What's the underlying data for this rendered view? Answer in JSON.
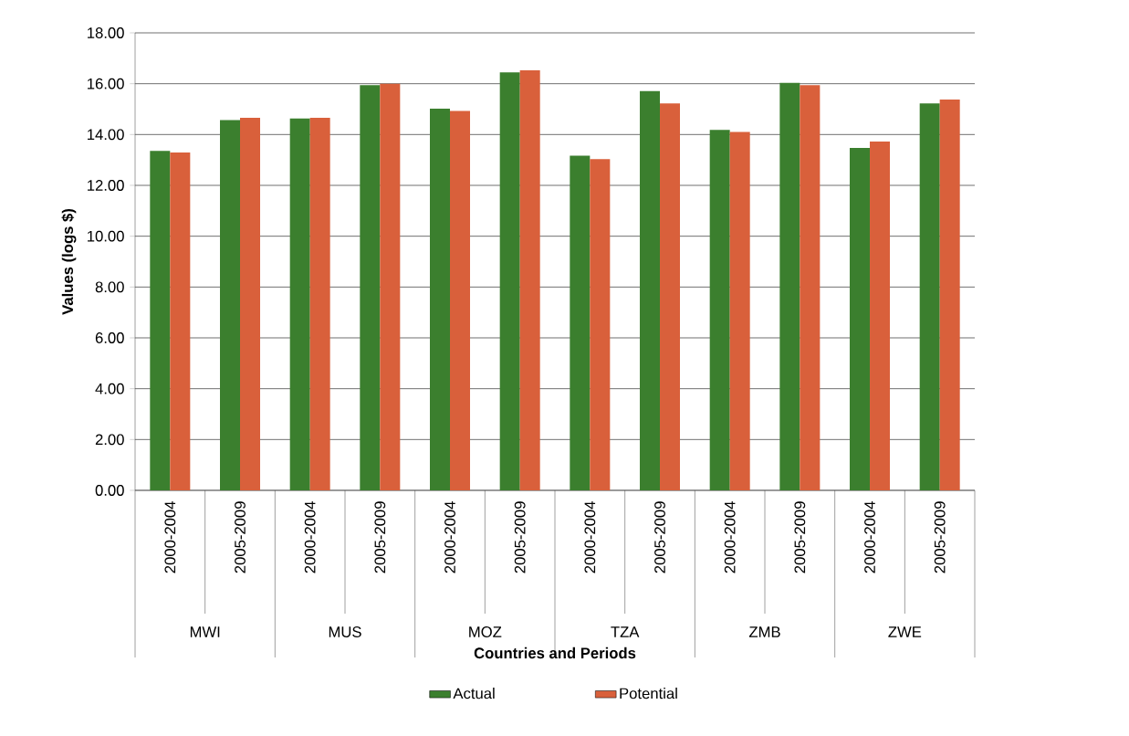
{
  "chart_data": {
    "type": "bar",
    "categories": [
      "2000-2004",
      "2005-2009",
      "2000-2004",
      "2005-2009",
      "2000-2004",
      "2005-2009",
      "2000-2004",
      "2005-2009",
      "2000-2004",
      "2005-2009",
      "2000-2004",
      "2005-2009"
    ],
    "series": [
      {
        "name": "Actual",
        "color": "#3b7f2e",
        "values": [
          13.36,
          14.57,
          14.63,
          15.94,
          15.02,
          16.45,
          13.17,
          15.71,
          14.18,
          16.03,
          13.47,
          15.22
        ]
      },
      {
        "name": "Potential",
        "color": "#d9603b",
        "values": [
          13.29,
          14.66,
          14.66,
          16.0,
          14.93,
          16.53,
          13.03,
          15.22,
          14.1,
          15.94,
          13.72,
          15.38
        ]
      }
    ],
    "annotations": [
      "MWI",
      "MUS",
      "MOZ",
      "TZA",
      "ZMB",
      "ZWE"
    ],
    "xlabel": "Countries and Periods",
    "ylabel": "Values (logs $)",
    "ylim": [
      0,
      18
    ],
    "yticks": [
      {
        "value": 0,
        "label": "0.00"
      },
      {
        "value": 2,
        "label": "2.00"
      },
      {
        "value": 4,
        "label": "4.00"
      },
      {
        "value": 6,
        "label": "6.00"
      },
      {
        "value": 8,
        "label": "8.00"
      },
      {
        "value": 10,
        "label": "10.00"
      },
      {
        "value": 12,
        "label": "12.00"
      },
      {
        "value": 14,
        "label": "14.00"
      },
      {
        "value": 16,
        "label": "16.00"
      },
      {
        "value": 18,
        "label": "18.00"
      }
    ],
    "grid": "y",
    "legend": "bottom"
  }
}
